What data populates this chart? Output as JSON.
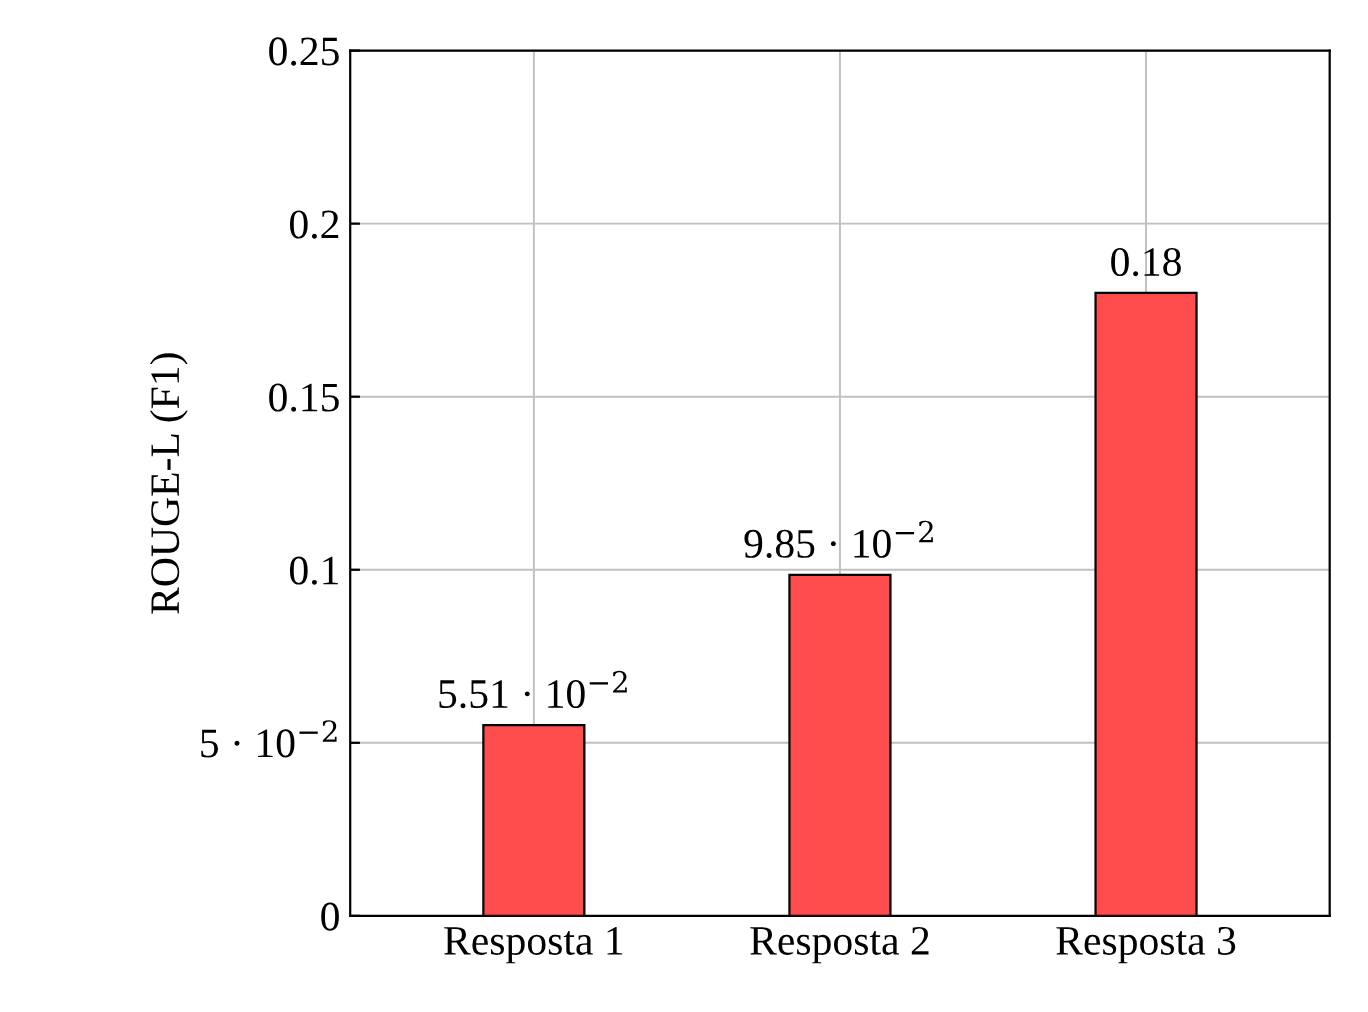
{
  "chart_data": {
    "type": "bar",
    "ylabel": "ROUGE-L (F1)",
    "categories": [
      "Resposta 1",
      "Resposta 2",
      "Resposta 3"
    ],
    "values": [
      0.0551,
      0.0985,
      0.18
    ],
    "value_labels": [
      "5.51 · 10$^{−2}$",
      "9.85 · 10$^{−2}$",
      "0.18"
    ],
    "color": "#ff4d4d",
    "ylim": [
      0,
      0.25
    ],
    "yticks": [
      0,
      {
        "value": 0.05,
        "label": "5 · 10$^{−2}$"
      },
      0.1,
      0.15,
      0.2,
      0.25
    ],
    "grid": true
  }
}
